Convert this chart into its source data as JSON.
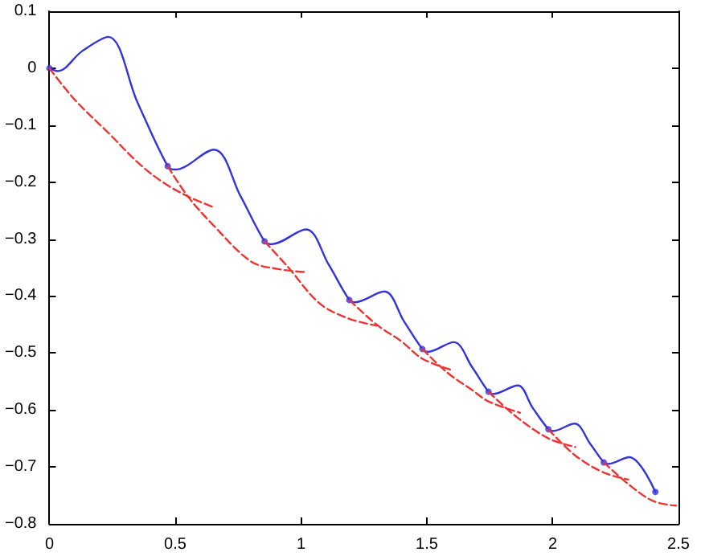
{
  "chart_data": {
    "type": "line",
    "xlim": [
      0,
      2.5
    ],
    "xticks": [
      0,
      0.5,
      1,
      1.5,
      2,
      2.5
    ],
    "ylim": [
      -0.8,
      0.1
    ],
    "yticks": [
      -0.8,
      -0.7,
      -0.6,
      -0.5,
      -0.4,
      -0.3,
      -0.2,
      -0.1,
      0,
      0.1
    ],
    "grid": false,
    "series": [
      {
        "color": "#3333dd",
        "marker": "none",
        "line_style": "solid",
        "x": [
          0,
          0.033,
          0.13,
          0.234,
          0.35,
          0.47,
          0.499,
          0.654,
          0.76,
          0.855,
          0.882,
          1.02,
          1.11,
          1.192,
          1.213,
          1.331,
          1.41,
          1.482,
          1.503,
          1.607,
          1.68,
          1.745,
          1.762,
          1.861,
          1.92,
          1.983,
          2.0,
          2.087,
          2.15,
          2.203,
          2.217,
          2.304,
          2.408
        ],
        "values": [
          0,
          -0.005,
          0.03,
          0.055,
          -0.06,
          -0.172,
          -0.178,
          -0.143,
          -0.225,
          -0.304,
          -0.309,
          -0.283,
          -0.345,
          -0.407,
          -0.411,
          -0.392,
          -0.445,
          -0.493,
          -0.498,
          -0.481,
          -0.525,
          -0.568,
          -0.572,
          -0.557,
          -0.596,
          -0.634,
          -0.637,
          -0.624,
          -0.66,
          -0.692,
          -0.695,
          -0.683,
          -0.744
        ]
      },
      {
        "type": "scatter",
        "color": "#3333dd",
        "marker": "circle",
        "x": [
          0,
          0.47,
          0.855,
          1.192,
          1.482,
          1.745,
          1.983,
          2.203,
          2.408
        ],
        "values": [
          0,
          -0.172,
          -0.304,
          -0.407,
          -0.493,
          -0.568,
          -0.634,
          -0.692,
          -0.744
        ]
      },
      {
        "type": "line",
        "color": "#ee3333",
        "marker": "none",
        "line_style": "dashed",
        "x": [
          0,
          0.1,
          0.24,
          0.35,
          0.45,
          0.55,
          0.652
        ],
        "values": [
          0,
          -0.055,
          -0.116,
          -0.165,
          -0.2,
          -0.225,
          -0.244
        ]
      },
      {
        "type": "line",
        "color": "#ee3333",
        "marker": "none",
        "line_style": "dashed",
        "x": [
          0.47,
          0.55,
          0.65,
          0.8,
          0.9,
          1.017
        ],
        "values": [
          -0.172,
          -0.225,
          -0.275,
          -0.339,
          -0.352,
          -0.358
        ]
      },
      {
        "type": "line",
        "color": "#ee3333",
        "marker": "none",
        "line_style": "dashed",
        "x": [
          0.855,
          0.95,
          1.074,
          1.192,
          1.3
        ],
        "values": [
          -0.304,
          -0.35,
          -0.413,
          -0.44,
          -0.452
        ]
      },
      {
        "type": "line",
        "color": "#ee3333",
        "marker": "none",
        "line_style": "dashed",
        "x": [
          1.192,
          1.3,
          1.4,
          1.482,
          1.6
        ],
        "values": [
          -0.407,
          -0.45,
          -0.48,
          -0.51,
          -0.53
        ]
      },
      {
        "type": "line",
        "color": "#ee3333",
        "marker": "none",
        "line_style": "dashed",
        "x": [
          1.482,
          1.58,
          1.68,
          1.745,
          1.87
        ],
        "values": [
          -0.493,
          -0.534,
          -0.565,
          -0.585,
          -0.605
        ]
      },
      {
        "type": "line",
        "color": "#ee3333",
        "marker": "none",
        "line_style": "dashed",
        "x": [
          1.745,
          1.85,
          1.983,
          2.09
        ],
        "values": [
          -0.568,
          -0.61,
          -0.65,
          -0.665
        ]
      },
      {
        "type": "line",
        "color": "#ee3333",
        "marker": "none",
        "line_style": "dashed",
        "x": [
          1.983,
          2.09,
          2.203,
          2.3
        ],
        "values": [
          -0.634,
          -0.68,
          -0.71,
          -0.722
        ]
      },
      {
        "type": "line",
        "color": "#ee3333",
        "marker": "none",
        "line_style": "dashed",
        "x": [
          2.203,
          2.3,
          2.4,
          2.49
        ],
        "values": [
          -0.692,
          -0.73,
          -0.76,
          -0.768
        ]
      }
    ]
  }
}
